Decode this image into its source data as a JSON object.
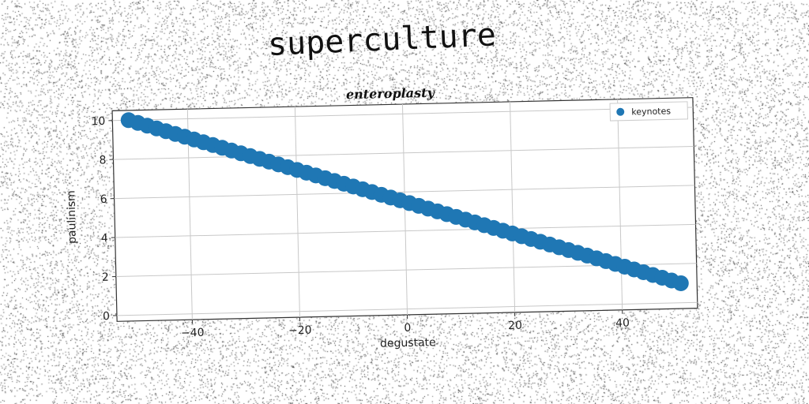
{
  "title": "superculture",
  "chart_data": {
    "type": "scatter",
    "title": "enteroplasty",
    "xlabel": "degustate",
    "ylabel": "paulinism",
    "xlim": [
      -54,
      54
    ],
    "ylim": [
      -0.3,
      10.5
    ],
    "xticks": [
      -40,
      -20,
      0,
      20,
      40
    ],
    "yticks": [
      0,
      2,
      4,
      6,
      8,
      10
    ],
    "grid": true,
    "legend_position": "top-right",
    "series": [
      {
        "name": "keynotes",
        "color": "#1f77b4",
        "x_start": -51,
        "x_end": 51,
        "count": 60,
        "y_start": 10,
        "y_end": 1
      }
    ]
  }
}
